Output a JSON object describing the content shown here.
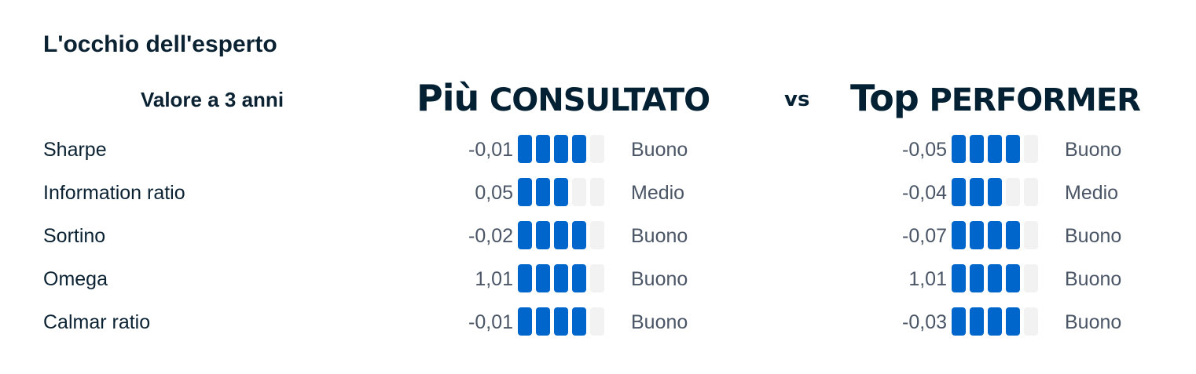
{
  "title": "L'occhio dell'esperto",
  "subtitle": "Valore a 3 anni",
  "header_left": {
    "bold": "Più",
    "rest": "CONSULTATO"
  },
  "vs": "vs",
  "header_right": {
    "bold": "Top",
    "rest": "PERFORMER"
  },
  "colors": {
    "filled": "#0066cc",
    "empty": "#f2f2f2"
  },
  "max_level": 5,
  "rows": [
    {
      "label": "Sharpe",
      "left": {
        "value": "-0,01",
        "level": 4,
        "status": "Buono"
      },
      "right": {
        "value": "-0,05",
        "level": 4,
        "status": "Buono"
      }
    },
    {
      "label": "Information ratio",
      "left": {
        "value": "0,05",
        "level": 3,
        "status": "Medio"
      },
      "right": {
        "value": "-0,04",
        "level": 3,
        "status": "Medio"
      }
    },
    {
      "label": "Sortino",
      "left": {
        "value": "-0,02",
        "level": 4,
        "status": "Buono"
      },
      "right": {
        "value": "-0,07",
        "level": 4,
        "status": "Buono"
      }
    },
    {
      "label": "Omega",
      "left": {
        "value": "1,01",
        "level": 4,
        "status": "Buono"
      },
      "right": {
        "value": "1,01",
        "level": 4,
        "status": "Buono"
      }
    },
    {
      "label": "Calmar ratio",
      "left": {
        "value": "-0,01",
        "level": 4,
        "status": "Buono"
      },
      "right": {
        "value": "-0,03",
        "level": 4,
        "status": "Buono"
      }
    }
  ]
}
